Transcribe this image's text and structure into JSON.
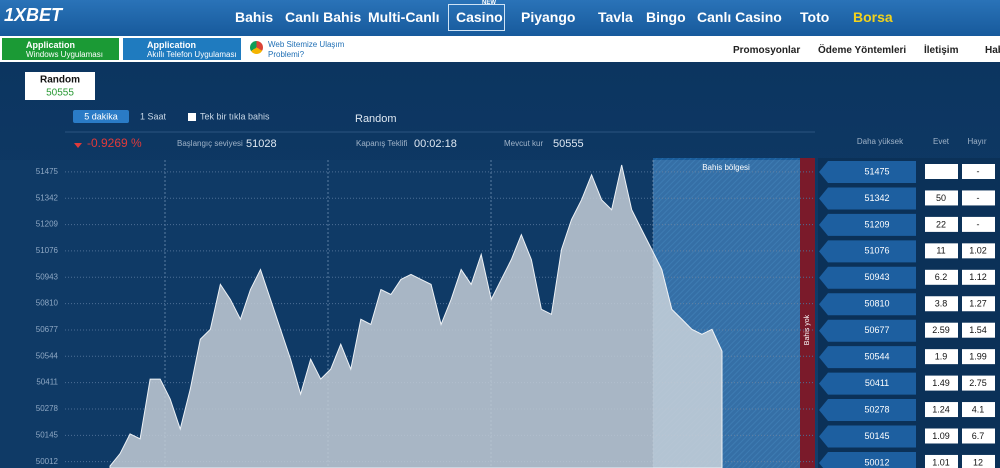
{
  "nav": {
    "logo": "1XBET",
    "badge": "NEW",
    "items": [
      "Bahis",
      "Canlı Bahis",
      "Multi-Canlı",
      "Casino",
      "Piyango",
      "Tavla",
      "Bingo",
      "Canlı Casino",
      "Toto",
      "Borsa"
    ]
  },
  "subbar": {
    "apps": [
      {
        "title": "Application",
        "subtitle": "Windows Uygulaması"
      },
      {
        "title": "Application",
        "subtitle": "Akıllı Telefon Uygulaması"
      }
    ],
    "help": "Web Sitemize Ulaşım Problemi?",
    "links": [
      "Promosyonlar",
      "Ödeme Yöntemleri",
      "İletişim",
      "Hab"
    ]
  },
  "asset_tab": {
    "name": "Random",
    "value": 50555
  },
  "controls": {
    "periods": [
      "5 dakika",
      "1 Saat"
    ],
    "checkbox": "Tek bir tıkla bahis",
    "asset": "Random"
  },
  "stats": {
    "change": "-0.9269 %",
    "start_label": "Başlangıç seviyesi",
    "start": 51028,
    "close_label": "Kapanış Teklifi",
    "close": "00:02:18",
    "rate_label": "Mevcut kur",
    "rate": 50555
  },
  "zone": {
    "label": "Bahis bölgesi",
    "no_bet": "Bahis yok"
  },
  "table": {
    "headers": [
      "Daha yüksek",
      "Evet",
      "Hayır"
    ],
    "rows": [
      [
        51475,
        null,
        "-"
      ],
      [
        51342,
        50,
        "-"
      ],
      [
        51209,
        22,
        "-"
      ],
      [
        51076,
        11,
        1.02
      ],
      [
        50943,
        6.2,
        1.12
      ],
      [
        50810,
        3.8,
        1.27
      ],
      [
        50677,
        2.59,
        1.54
      ],
      [
        50544,
        1.9,
        1.99
      ],
      [
        50411,
        1.49,
        2.75
      ],
      [
        50278,
        1.24,
        4.1
      ],
      [
        50145,
        1.09,
        6.7
      ],
      [
        50012,
        1.01,
        12
      ]
    ]
  },
  "chart_data": {
    "type": "area",
    "color": "#c3ccd6",
    "grid": true,
    "values": [
      49990,
      50052,
      50152,
      50127,
      50429,
      50429,
      50328,
      50177,
      50378,
      50630,
      50680,
      50907,
      50831,
      50731,
      50881,
      50982,
      50831,
      50680,
      50529,
      50353,
      50529,
      50429,
      50479,
      50605,
      50479,
      50731,
      50705,
      50881,
      50856,
      50932,
      50957,
      50932,
      50907,
      50705,
      50831,
      50982,
      50907,
      51058,
      50831,
      50932,
      51032,
      51158,
      51032,
      50781,
      50756,
      51083,
      51234,
      51334,
      51460,
      51334,
      51284,
      51510,
      51284,
      51183,
      51083,
      50982,
      50781,
      50731,
      50680,
      50655,
      50680,
      50570
    ],
    "ylim": [
      49980,
      51535
    ],
    "yticks": [
      51475,
      51342,
      51209,
      51076,
      50943,
      50810,
      50677,
      50544,
      50411,
      50278,
      50145,
      50012
    ]
  }
}
